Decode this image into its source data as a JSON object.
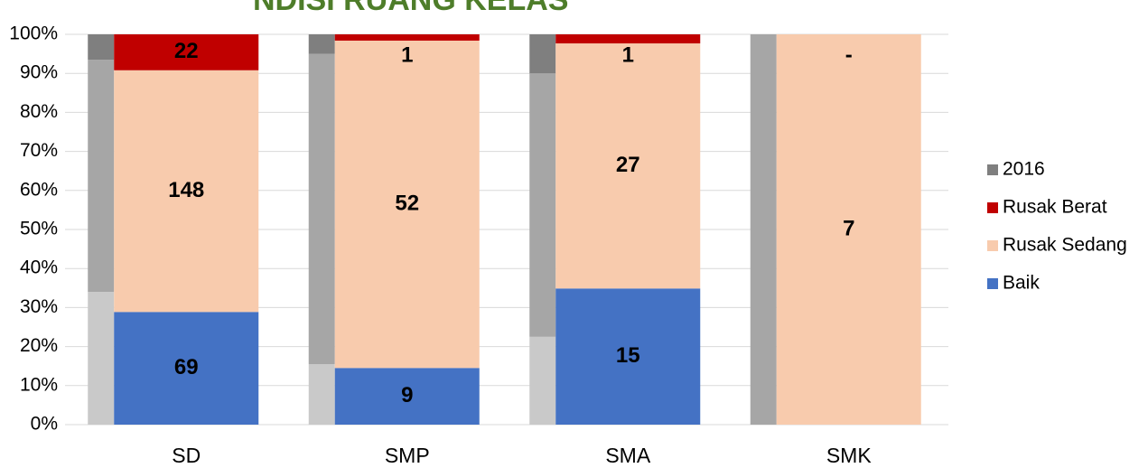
{
  "chart_data": {
    "type": "bar",
    "stacking": "percent",
    "title": "NDISI RUANG KELAS",
    "categories": [
      "SD",
      "SMP",
      "SMA",
      "SMK"
    ],
    "ylim": [
      0,
      100
    ],
    "yticks": [
      {
        "value": 0,
        "label": "0%"
      },
      {
        "value": 10,
        "label": "10%"
      },
      {
        "value": 20,
        "label": "20%"
      },
      {
        "value": 30,
        "label": "30%"
      },
      {
        "value": 40,
        "label": "40%"
      },
      {
        "value": 50,
        "label": "50%"
      },
      {
        "value": 60,
        "label": "60%"
      },
      {
        "value": 70,
        "label": "70%"
      },
      {
        "value": 80,
        "label": "80%"
      },
      {
        "value": 90,
        "label": "90%"
      },
      {
        "value": 100,
        "label": "100%"
      }
    ],
    "grid": true,
    "legend": "right",
    "reference": {
      "name": "2016",
      "color": "#7f7f7f",
      "shade_colors": [
        "#c9c9c9",
        "#a6a6a6",
        "#7f7f7f"
      ],
      "segments": [
        [
          34,
          59.5,
          6.5
        ],
        [
          15.5,
          79.5,
          5
        ],
        [
          22.5,
          67.5,
          10
        ],
        [
          0,
          100,
          0
        ]
      ]
    },
    "series": [
      {
        "name": "Baik",
        "color": "#4472c4",
        "label_color": "#ffffff",
        "values": [
          69,
          9,
          15,
          null
        ]
      },
      {
        "name": "Rusak Sedang",
        "color": "#f8cbad",
        "label_color": "#000000",
        "values": [
          148,
          52,
          27,
          7
        ]
      },
      {
        "name": "Rusak Berat",
        "color": "#c00000",
        "label_color": "#ffffff",
        "values": [
          22,
          1,
          1,
          0
        ],
        "value_labels": [
          "22",
          "1",
          "1",
          "-"
        ]
      }
    ]
  }
}
